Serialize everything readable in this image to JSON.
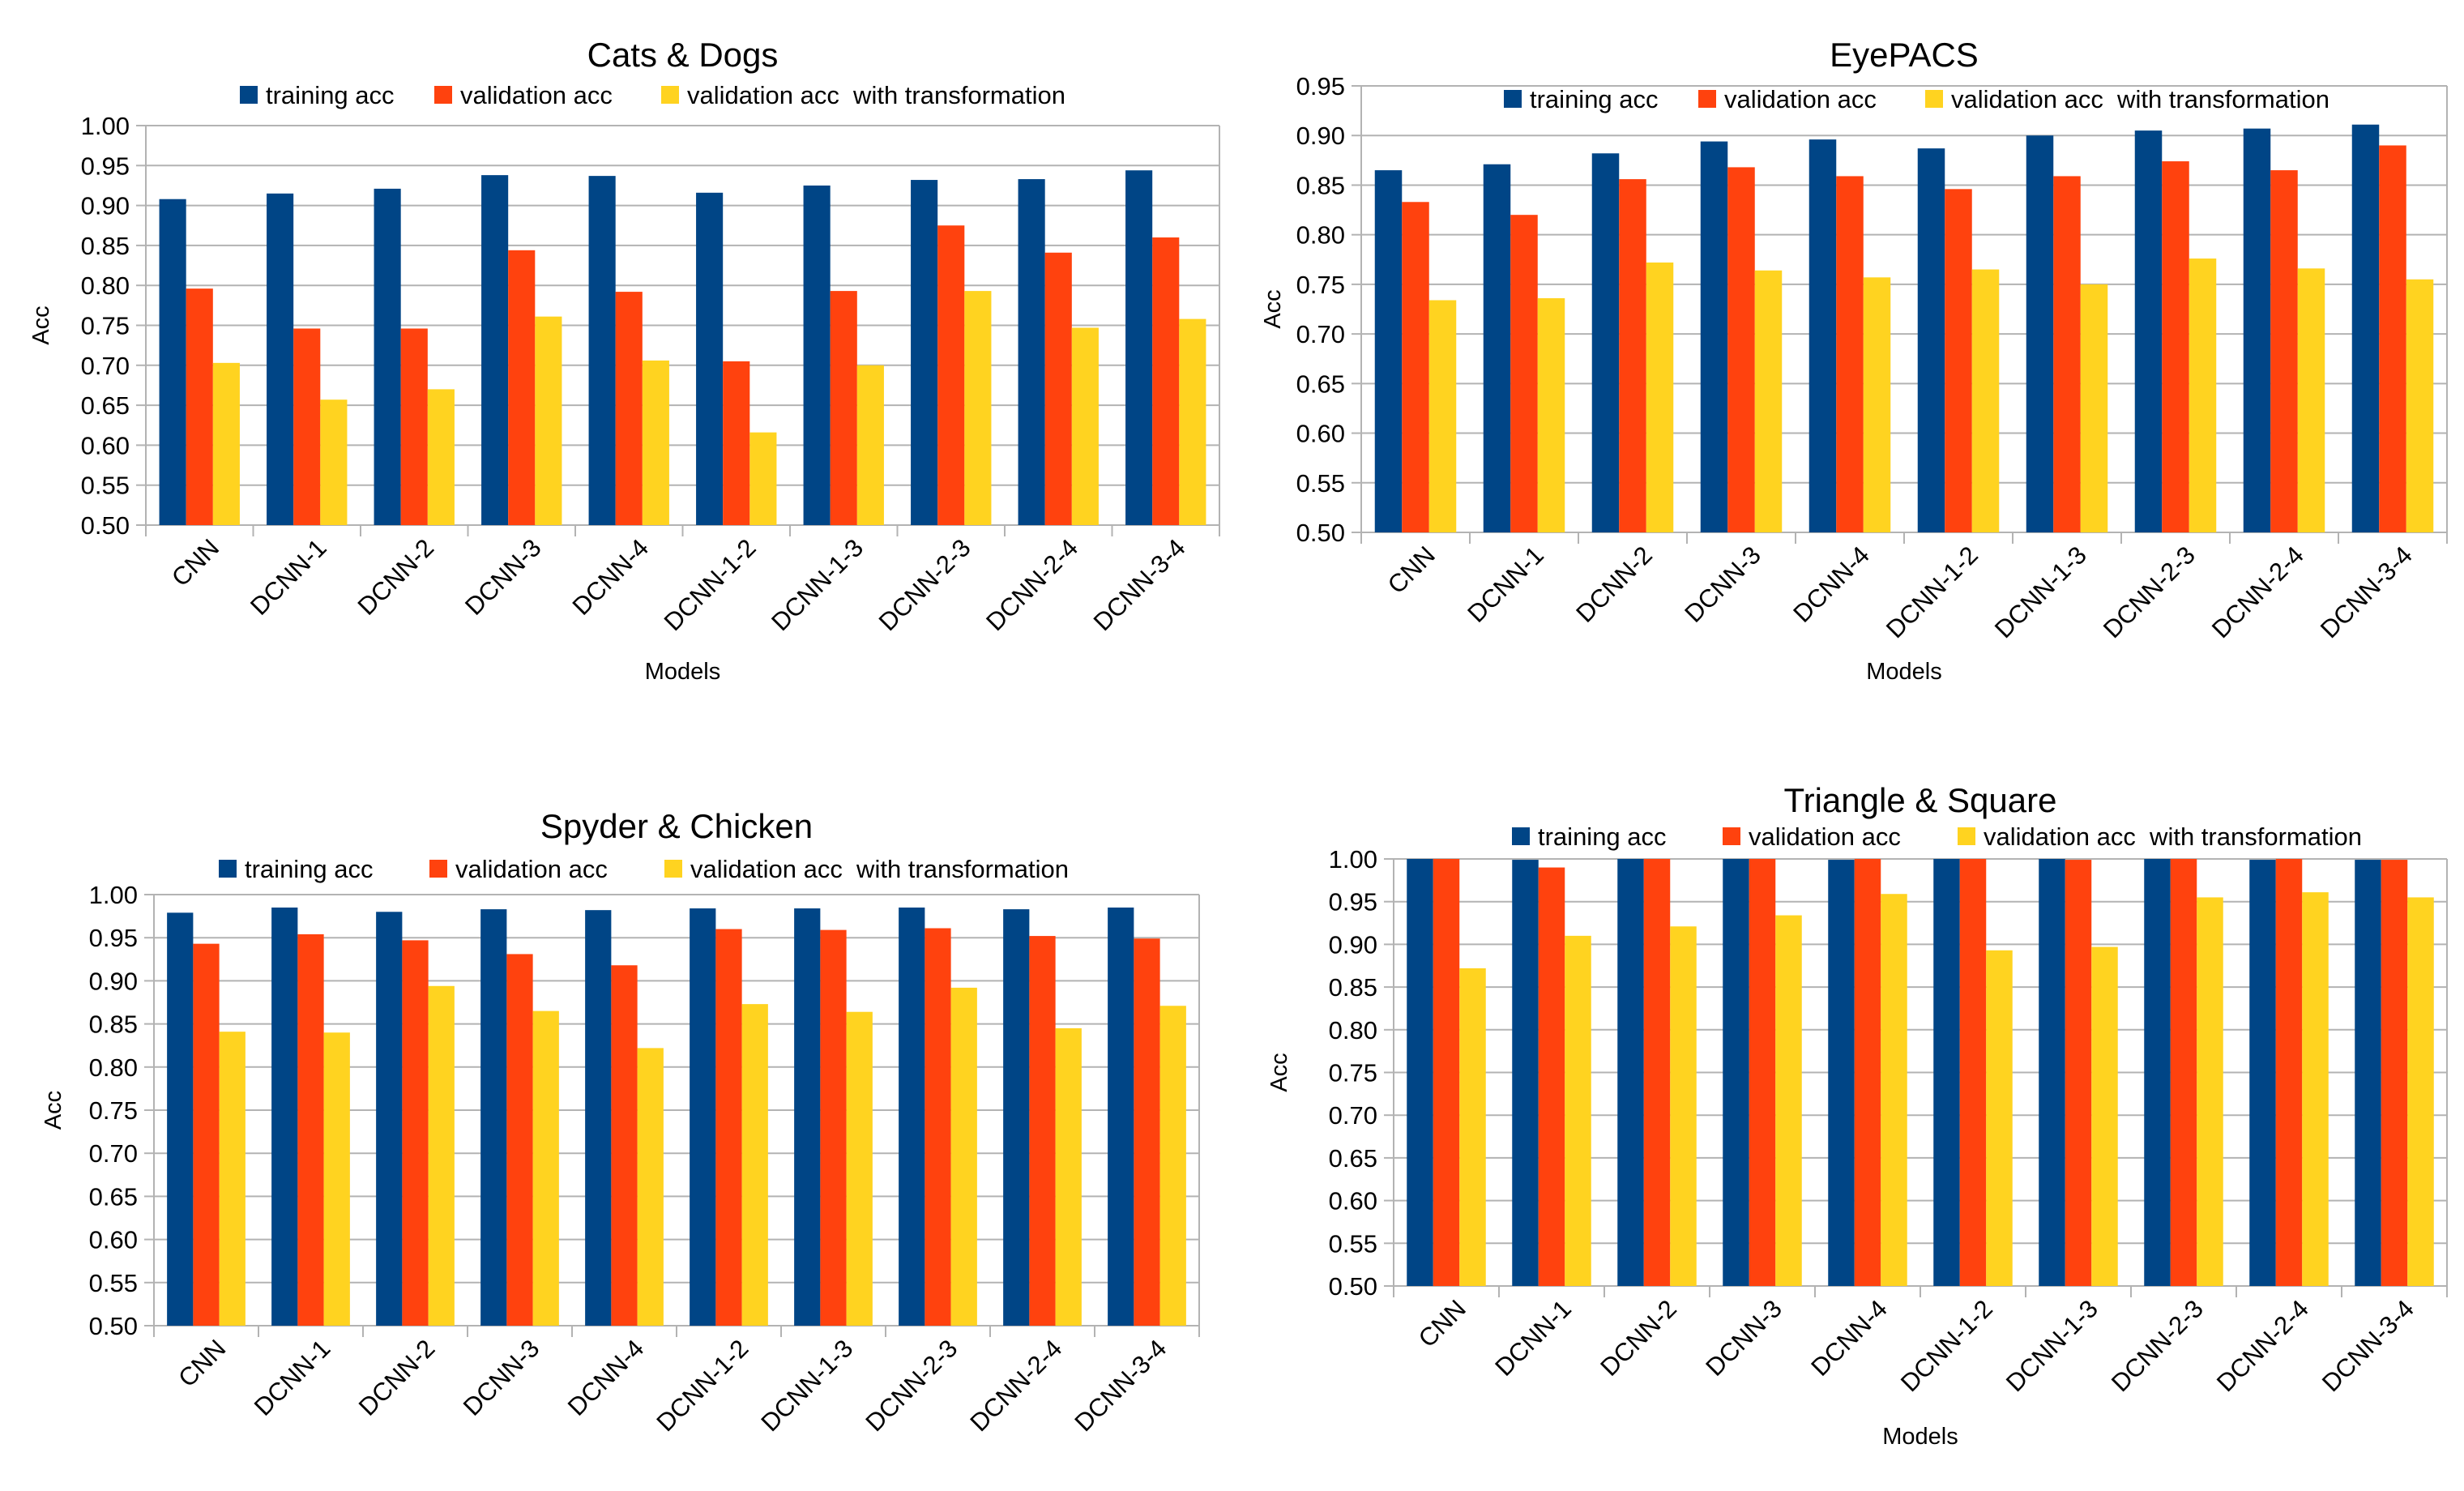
{
  "colors": {
    "training": "#004586",
    "validation": "#ff420e",
    "transform": "#ffd320"
  },
  "chart_data": [
    {
      "type": "bar",
      "title": "Cats & Dogs",
      "xlabel": "Models",
      "ylabel": "Acc",
      "ylim": [
        0.5,
        1.0
      ],
      "ytick_step": 0.05,
      "legend_position": "top",
      "categories": [
        "CNN",
        "DCNN-1",
        "DCNN-2",
        "DCNN-3",
        "DCNN-4",
        "DCNN-1-2",
        "DCNN-1-3",
        "DCNN-2-3",
        "DCNN-2-4",
        "DCNN-3-4"
      ],
      "series": [
        {
          "name": "training acc",
          "values": [
            0.908,
            0.915,
            0.921,
            0.938,
            0.937,
            0.916,
            0.925,
            0.932,
            0.933,
            0.944
          ]
        },
        {
          "name": "validation acc",
          "values": [
            0.796,
            0.746,
            0.746,
            0.844,
            0.792,
            0.705,
            0.793,
            0.875,
            0.841,
            0.86
          ]
        },
        {
          "name": "validation acc  with transformation",
          "values": [
            0.703,
            0.657,
            0.67,
            0.761,
            0.706,
            0.616,
            0.7,
            0.793,
            0.747,
            0.758
          ]
        }
      ]
    },
    {
      "type": "bar",
      "title": "EyePACS",
      "xlabel": "Models",
      "ylabel": "Acc",
      "ylim": [
        0.5,
        0.95
      ],
      "ytick_step": 0.05,
      "legend_position": "top",
      "categories": [
        "CNN",
        "DCNN-1",
        "DCNN-2",
        "DCNN-3",
        "DCNN-4",
        "DCNN-1-2",
        "DCNN-1-3",
        "DCNN-2-3",
        "DCNN-2-4",
        "DCNN-3-4"
      ],
      "series": [
        {
          "name": "training acc",
          "values": [
            0.865,
            0.871,
            0.882,
            0.894,
            0.896,
            0.887,
            0.9,
            0.905,
            0.907,
            0.911
          ]
        },
        {
          "name": "validation acc",
          "values": [
            0.833,
            0.82,
            0.856,
            0.868,
            0.859,
            0.846,
            0.859,
            0.874,
            0.865,
            0.89
          ]
        },
        {
          "name": "validation acc  with transformation",
          "values": [
            0.734,
            0.736,
            0.772,
            0.764,
            0.757,
            0.765,
            0.75,
            0.776,
            0.766,
            0.755
          ]
        }
      ]
    },
    {
      "type": "bar",
      "title": "Spyder & Chicken",
      "xlabel": "",
      "ylabel": "Acc",
      "ylim": [
        0.5,
        1.0
      ],
      "ytick_step": 0.05,
      "legend_position": "top",
      "categories": [
        "CNN",
        "DCNN-1",
        "DCNN-2",
        "DCNN-3",
        "DCNN-4",
        "DCNN-1-2",
        "DCNN-1-3",
        "DCNN-2-3",
        "DCNN-2-4",
        "DCNN-3-4"
      ],
      "series": [
        {
          "name": "training acc",
          "values": [
            0.979,
            0.985,
            0.98,
            0.983,
            0.982,
            0.984,
            0.984,
            0.985,
            0.983,
            0.985
          ]
        },
        {
          "name": "validation acc",
          "values": [
            0.943,
            0.954,
            0.947,
            0.931,
            0.918,
            0.96,
            0.959,
            0.961,
            0.952,
            0.949
          ]
        },
        {
          "name": "validation acc  with transformation",
          "values": [
            0.841,
            0.84,
            0.894,
            0.865,
            0.822,
            0.873,
            0.864,
            0.892,
            0.845,
            0.871
          ]
        }
      ]
    },
    {
      "type": "bar",
      "title": "Triangle & Square",
      "xlabel": "Models",
      "ylabel": "Acc",
      "ylim": [
        0.5,
        1.0
      ],
      "ytick_step": 0.05,
      "legend_position": "top",
      "categories": [
        "CNN",
        "DCNN-1",
        "DCNN-2",
        "DCNN-3",
        "DCNN-4",
        "DCNN-1-2",
        "DCNN-1-3",
        "DCNN-2-3",
        "DCNN-2-4",
        "DCNN-3-4"
      ],
      "series": [
        {
          "name": "training acc",
          "values": [
            1.0,
            0.999,
            1.0,
            1.0,
            0.999,
            1.0,
            1.0,
            1.0,
            0.999,
            0.999
          ]
        },
        {
          "name": "validation acc",
          "values": [
            1.0,
            0.99,
            1.0,
            1.0,
            1.0,
            1.0,
            0.999,
            1.0,
            1.0,
            0.999
          ]
        },
        {
          "name": "validation acc  with transformation",
          "values": [
            0.872,
            0.91,
            0.921,
            0.934,
            0.959,
            0.893,
            0.897,
            0.955,
            0.961,
            0.955
          ]
        }
      ]
    }
  ]
}
